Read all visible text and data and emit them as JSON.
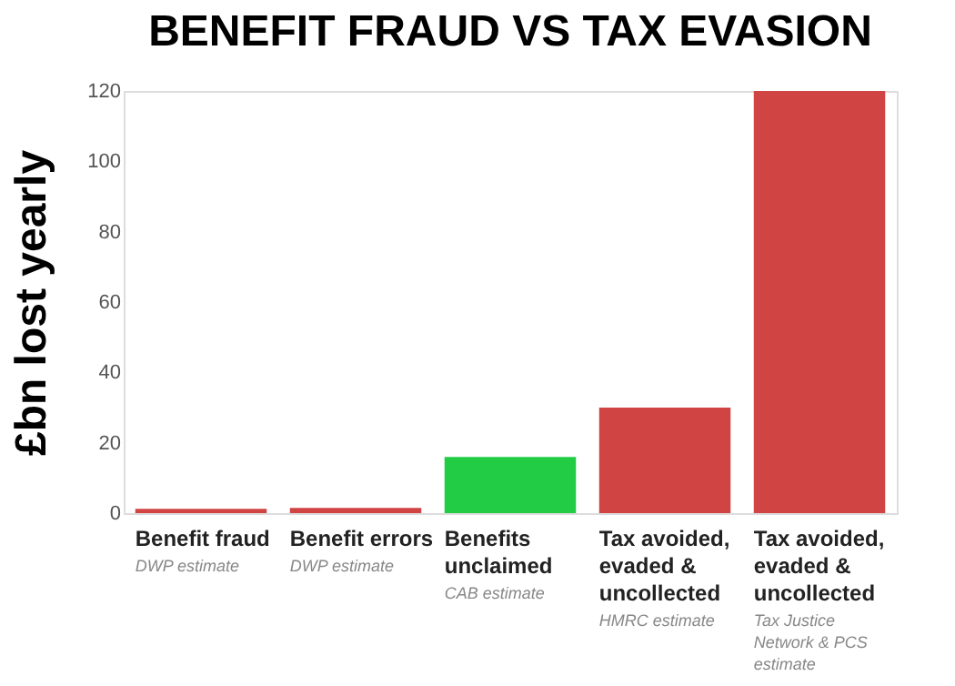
{
  "chart_data": {
    "type": "bar",
    "title": "BENEFIT FRAUD VS TAX EVASION",
    "ylabel": "£bn lost yearly",
    "categories": [
      "Benefit fraud",
      "Benefit errors",
      "Benefits unclaimed",
      "Tax avoided, evaded & uncollected",
      "Tax avoided, evaded & uncollected"
    ],
    "values": [
      1.2,
      1.5,
      16,
      30,
      120
    ],
    "colors": [
      "#d04444",
      "#d04444",
      "#22cc44",
      "#d04444",
      "#d04444"
    ],
    "ylim": [
      0,
      120
    ],
    "yticks": [
      0,
      20,
      40,
      60,
      80,
      100,
      120
    ],
    "grid": false,
    "annotations": [
      "DWP estimate",
      "DWP estimate",
      "CAB estimate",
      "HMRC estimate",
      "Tax Justice Network & PCS estimate"
    ]
  }
}
